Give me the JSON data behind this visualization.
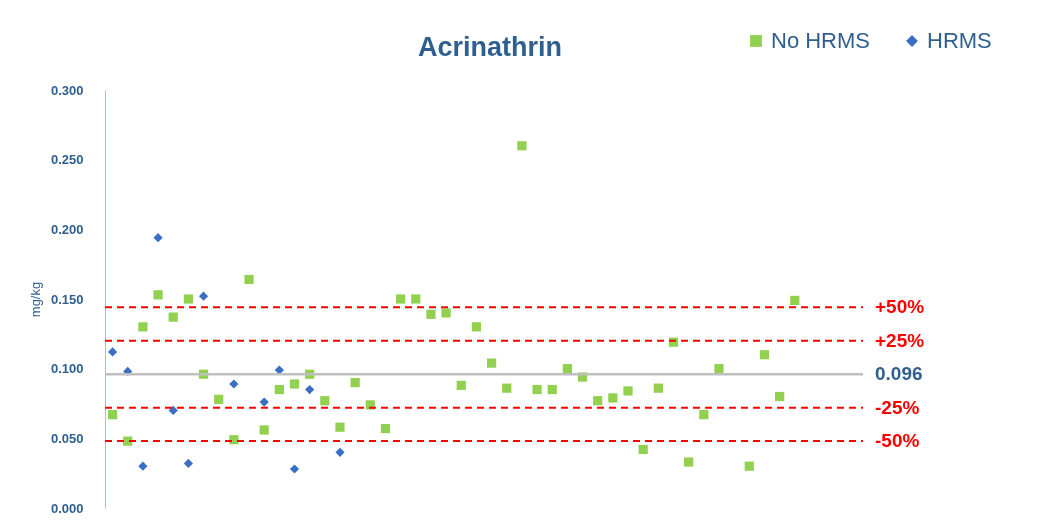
{
  "chart_data": {
    "type": "scatter",
    "title": "Acrinathrin",
    "ylabel": "mg/kg",
    "categories": [
      null,
      null,
      null,
      null,
      null,
      null,
      null,
      null,
      null,
      null,
      null,
      null,
      null,
      null,
      null,
      null,
      null,
      null,
      null,
      null,
      null,
      null,
      null,
      null,
      null,
      null,
      null,
      null,
      null,
      null,
      null,
      null,
      null,
      null,
      null,
      null,
      null,
      null,
      null,
      null,
      null,
      null,
      null,
      null,
      null,
      null,
      null,
      null,
      null,
      null
    ],
    "series": [
      {
        "name": "No HRMS",
        "color": "#92d050",
        "marker": "square",
        "values": [
          0.067,
          0.048,
          0.13,
          0.153,
          0.137,
          0.15,
          0.096,
          0.078,
          0.049,
          0.164,
          0.056,
          0.085,
          0.089,
          0.096,
          0.077,
          0.058,
          0.09,
          0.074,
          0.057,
          0.15,
          0.15,
          0.139,
          0.14,
          0.088,
          0.13,
          0.104,
          0.086,
          0.26,
          0.085,
          0.085,
          0.1,
          0.094,
          0.077,
          0.079,
          0.084,
          0.042,
          0.086,
          0.119,
          0.033,
          0.067,
          0.1,
          null,
          0.03,
          0.11,
          0.08,
          0.149,
          null,
          null,
          null,
          null
        ]
      },
      {
        "name": "HRMS",
        "color": "#3a6fc4",
        "marker": "diamond",
        "values": [
          0.112,
          0.098,
          0.03,
          0.194,
          0.07,
          0.032,
          0.152,
          null,
          0.089,
          null,
          0.076,
          0.099,
          0.028,
          0.085,
          null,
          0.04,
          null,
          null,
          null,
          null,
          null,
          null,
          null,
          null,
          null,
          null,
          null,
          null,
          null,
          null,
          null,
          null,
          null,
          null,
          null,
          null,
          null,
          null,
          null,
          null,
          null,
          null,
          null,
          null,
          null,
          null,
          null,
          null,
          null,
          null
        ]
      }
    ],
    "ylim": [
      0,
      0.3
    ],
    "yticks": [
      {
        "value": 0,
        "label": "0.000"
      },
      {
        "value": 0.05,
        "label": "0.050"
      },
      {
        "value": 0.1,
        "label": "0.100"
      },
      {
        "value": 0.15,
        "label": "0.150"
      },
      {
        "value": 0.2,
        "label": "0.200"
      },
      {
        "value": 0.25,
        "label": "0.250"
      },
      {
        "value": 0.3,
        "label": "0.300"
      }
    ],
    "ref_lines": [
      {
        "axis": "y",
        "value": 0.144,
        "color": "#ff0000",
        "line_style": "dashed"
      },
      {
        "axis": "y",
        "value": 0.12,
        "color": "#ff0000",
        "line_style": "dashed"
      },
      {
        "axis": "y",
        "value": 0.096,
        "label": "0.096",
        "color": "#bfbfbf",
        "line_style": "solid"
      },
      {
        "axis": "y",
        "value": 0.072,
        "color": "#ff0000",
        "line_style": "dashed"
      },
      {
        "axis": "y",
        "value": 0.048,
        "color": "#ff0000",
        "line_style": "dashed"
      }
    ],
    "annotations": [
      "+50%",
      "+25%",
      "-25%",
      "-50%"
    ],
    "grid": false,
    "legend": "top right",
    "tick_labels": "y"
  }
}
